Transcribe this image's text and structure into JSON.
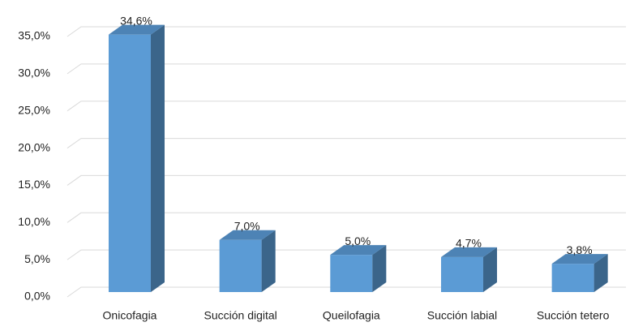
{
  "chart_data": {
    "type": "bar3d",
    "categories": [
      "Onicofagia",
      "Succión digital",
      "Queilofagia",
      "Succión labial",
      "Succión tetero"
    ],
    "values": [
      34.6,
      7.0,
      5.0,
      4.7,
      3.8
    ],
    "value_labels": [
      "34,6%",
      "7,0%",
      "5,0%",
      "4,7%",
      "3,8%"
    ],
    "color": "#5b9bd5",
    "ylim": [
      0,
      35
    ],
    "yticks": [
      {
        "value": 0,
        "label": "0,0%"
      },
      {
        "value": 5,
        "label": "5,0%"
      },
      {
        "value": 10,
        "label": "10,0%"
      },
      {
        "value": 15,
        "label": "15,0%"
      },
      {
        "value": 20,
        "label": "20,0%"
      },
      {
        "value": 25,
        "label": "25,0%"
      },
      {
        "value": 30,
        "label": "30,0%"
      },
      {
        "value": 35,
        "label": "35,0%"
      }
    ],
    "grid": true
  }
}
